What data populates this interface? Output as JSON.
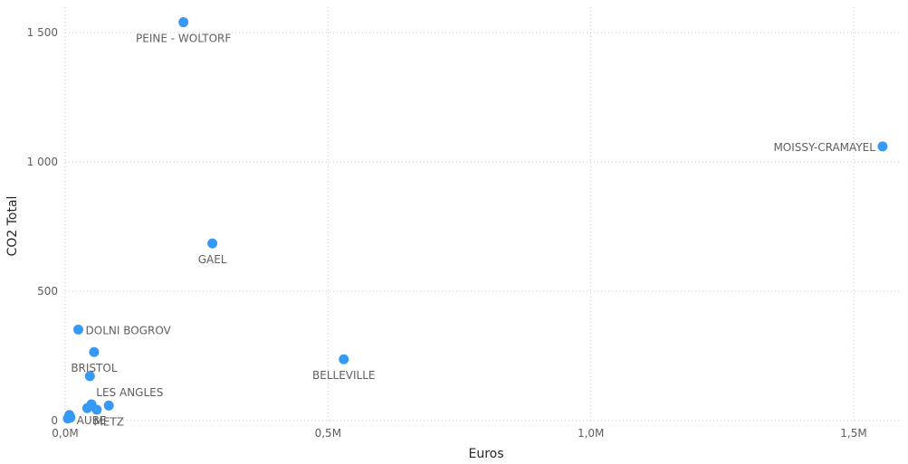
{
  "chart_data": {
    "type": "scatter",
    "title": "",
    "xlabel": "Euros",
    "ylabel": "CO2 Total",
    "xlim": [
      0,
      1600000
    ],
    "ylim": [
      0,
      1500
    ],
    "x_ticks": [
      {
        "value": 0,
        "label": "0,0M"
      },
      {
        "value": 500000,
        "label": "0,5M"
      },
      {
        "value": 1000000,
        "label": "1,0M"
      },
      {
        "value": 1500000,
        "label": "1,5M"
      }
    ],
    "y_ticks": [
      {
        "value": 0,
        "label": "0"
      },
      {
        "value": 500,
        "label": "500"
      },
      {
        "value": 1000,
        "label": "1 000"
      },
      {
        "value": 1500,
        "label": "1 500"
      }
    ],
    "grid": true,
    "point_color": "#3599f5",
    "points": [
      {
        "x": 225000,
        "y": 1540,
        "label": "PEINE - WOLTORF",
        "label_pos": "below"
      },
      {
        "x": 1555000,
        "y": 1060,
        "label": "MOISSY-CRAMAYEL",
        "label_pos": "left"
      },
      {
        "x": 280000,
        "y": 685,
        "label": "GAEL",
        "label_pos": "below"
      },
      {
        "x": 25000,
        "y": 352,
        "label": "DOLNI BOGROV",
        "label_pos": "right"
      },
      {
        "x": 55000,
        "y": 265,
        "label": "BRISTOL",
        "label_pos": "below"
      },
      {
        "x": 530000,
        "y": 237,
        "label": "BELLEVILLE",
        "label_pos": "below"
      },
      {
        "x": 47000,
        "y": 172,
        "label": "LES ANGLES",
        "label_pos": "belowright"
      },
      {
        "x": 50000,
        "y": 63,
        "label": "AUBE",
        "label_pos": "below"
      },
      {
        "x": 83000,
        "y": 58,
        "label": "METZ",
        "label_pos": "below"
      },
      {
        "x": 42000,
        "y": 48,
        "label": "",
        "label_pos": "none"
      },
      {
        "x": 60000,
        "y": 42,
        "label": "",
        "label_pos": "none"
      },
      {
        "x": 8000,
        "y": 22,
        "label": "",
        "label_pos": "none"
      },
      {
        "x": 10000,
        "y": 12,
        "label": "",
        "label_pos": "none"
      },
      {
        "x": 5000,
        "y": 8,
        "label": "",
        "label_pos": "none"
      }
    ]
  }
}
